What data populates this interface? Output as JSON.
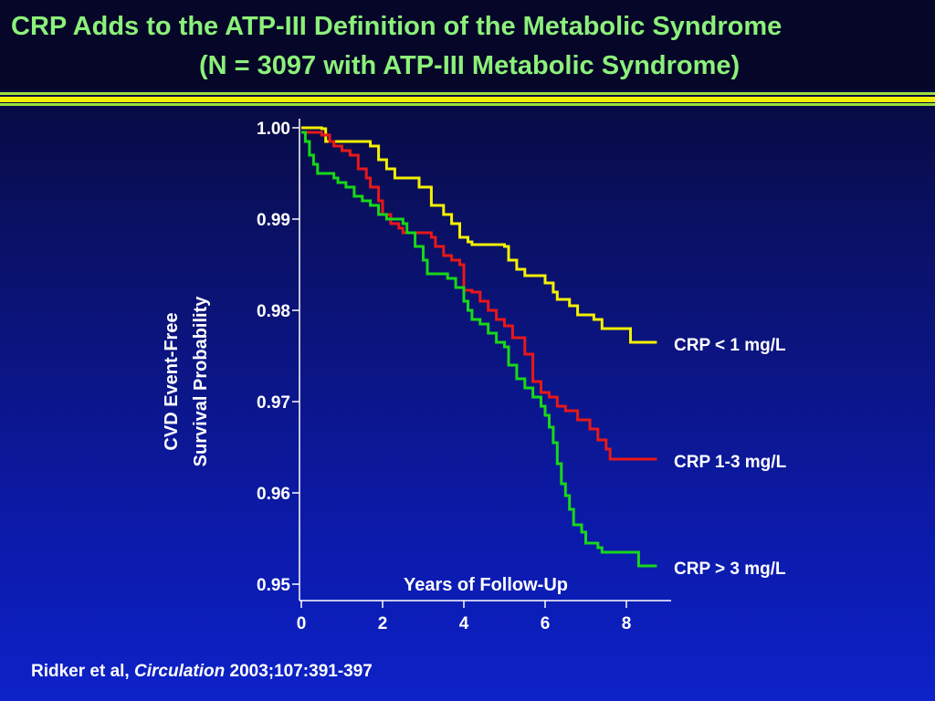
{
  "slide": {
    "title_line1": "CRP Adds to the ATP-III Definition of the Metabolic Syndrome",
    "title_line2": "(N = 3097 with ATP-III Metabolic Syndrome)",
    "citation_authors": "Ridker et al,",
    "citation_journal": "Circulation",
    "citation_ref": "2003;107:391-397"
  },
  "colors": {
    "title": "#8cf07a",
    "crp_low": "#f4f000",
    "crp_mid": "#e81818",
    "crp_high": "#18d818"
  },
  "chart_data": {
    "type": "line",
    "title": "",
    "xlabel": "Years of Follow-Up",
    "ylabel_line1": "CVD Event-Free",
    "ylabel_line2": "Survival Probability",
    "xlim": [
      0,
      9
    ],
    "ylim": [
      0.95,
      1.0
    ],
    "x_ticks": [
      0,
      2,
      4,
      6,
      8
    ],
    "x_tick_labels": [
      "0",
      "2",
      "4",
      "6",
      "8"
    ],
    "y_ticks": [
      0.95,
      0.96,
      0.97,
      0.98,
      0.99,
      1.0
    ],
    "y_tick_labels": [
      "0.95",
      "0.96",
      "0.97",
      "0.98",
      "0.99",
      "1.00"
    ],
    "series": [
      {
        "name": "CRP < 1 mg/L",
        "color": "#f4f000",
        "points": [
          [
            0,
            1.0
          ],
          [
            0.5,
            0.9999
          ],
          [
            0.6,
            0.9985
          ],
          [
            1.7,
            0.998
          ],
          [
            1.9,
            0.9965
          ],
          [
            2.1,
            0.9955
          ],
          [
            2.3,
            0.9945
          ],
          [
            2.9,
            0.9935
          ],
          [
            3.2,
            0.9915
          ],
          [
            3.5,
            0.9905
          ],
          [
            3.7,
            0.9895
          ],
          [
            3.9,
            0.988
          ],
          [
            4.1,
            0.9875
          ],
          [
            4.2,
            0.9872
          ],
          [
            5.0,
            0.987
          ],
          [
            5.1,
            0.9855
          ],
          [
            5.3,
            0.9845
          ],
          [
            5.5,
            0.9838
          ],
          [
            6.0,
            0.983
          ],
          [
            6.2,
            0.982
          ],
          [
            6.3,
            0.9812
          ],
          [
            6.6,
            0.9805
          ],
          [
            6.8,
            0.9795
          ],
          [
            7.2,
            0.979
          ],
          [
            7.4,
            0.978
          ],
          [
            8.1,
            0.9765
          ],
          [
            8.75,
            0.9765
          ]
        ]
      },
      {
        "name": "CRP 1-3 mg/L",
        "color": "#e81818",
        "points": [
          [
            0,
            0.9995
          ],
          [
            0.5,
            0.9992
          ],
          [
            0.7,
            0.9985
          ],
          [
            0.8,
            0.998
          ],
          [
            1.0,
            0.9975
          ],
          [
            1.2,
            0.997
          ],
          [
            1.4,
            0.9955
          ],
          [
            1.6,
            0.9945
          ],
          [
            1.7,
            0.9935
          ],
          [
            1.9,
            0.992
          ],
          [
            2.0,
            0.9905
          ],
          [
            2.2,
            0.9895
          ],
          [
            2.4,
            0.989
          ],
          [
            2.5,
            0.9885
          ],
          [
            3.2,
            0.988
          ],
          [
            3.3,
            0.987
          ],
          [
            3.5,
            0.986
          ],
          [
            3.7,
            0.9855
          ],
          [
            3.9,
            0.985
          ],
          [
            4.0,
            0.9822
          ],
          [
            4.2,
            0.982
          ],
          [
            4.4,
            0.981
          ],
          [
            4.6,
            0.98
          ],
          [
            4.8,
            0.979
          ],
          [
            5.0,
            0.9783
          ],
          [
            5.2,
            0.977
          ],
          [
            5.5,
            0.9752
          ],
          [
            5.7,
            0.9722
          ],
          [
            5.9,
            0.971
          ],
          [
            6.1,
            0.9705
          ],
          [
            6.3,
            0.9695
          ],
          [
            6.5,
            0.969
          ],
          [
            6.8,
            0.968
          ],
          [
            7.1,
            0.967
          ],
          [
            7.3,
            0.9658
          ],
          [
            7.5,
            0.9648
          ],
          [
            7.6,
            0.9637
          ],
          [
            8.75,
            0.9637
          ]
        ]
      },
      {
        "name": "CRP > 3 mg/L",
        "color": "#18d818",
        "points": [
          [
            0,
            0.9995
          ],
          [
            0.1,
            0.9985
          ],
          [
            0.2,
            0.997
          ],
          [
            0.3,
            0.996
          ],
          [
            0.4,
            0.995
          ],
          [
            0.8,
            0.9945
          ],
          [
            0.9,
            0.994
          ],
          [
            1.1,
            0.9935
          ],
          [
            1.3,
            0.9925
          ],
          [
            1.5,
            0.992
          ],
          [
            1.7,
            0.9915
          ],
          [
            1.9,
            0.9905
          ],
          [
            2.1,
            0.99
          ],
          [
            2.5,
            0.9895
          ],
          [
            2.6,
            0.9885
          ],
          [
            2.8,
            0.987
          ],
          [
            3.0,
            0.9855
          ],
          [
            3.1,
            0.984
          ],
          [
            3.6,
            0.9835
          ],
          [
            3.8,
            0.9825
          ],
          [
            4.0,
            0.981
          ],
          [
            4.1,
            0.98
          ],
          [
            4.2,
            0.979
          ],
          [
            4.4,
            0.9785
          ],
          [
            4.6,
            0.9775
          ],
          [
            4.8,
            0.9765
          ],
          [
            5.0,
            0.976
          ],
          [
            5.1,
            0.974
          ],
          [
            5.3,
            0.9725
          ],
          [
            5.5,
            0.9715
          ],
          [
            5.7,
            0.9705
          ],
          [
            5.9,
            0.9695
          ],
          [
            6.0,
            0.9685
          ],
          [
            6.1,
            0.9672
          ],
          [
            6.2,
            0.9655
          ],
          [
            6.3,
            0.9632
          ],
          [
            6.4,
            0.961
          ],
          [
            6.5,
            0.9597
          ],
          [
            6.6,
            0.9582
          ],
          [
            6.7,
            0.9565
          ],
          [
            6.9,
            0.9557
          ],
          [
            7.0,
            0.9545
          ],
          [
            7.3,
            0.954
          ],
          [
            7.4,
            0.9535
          ],
          [
            8.1,
            0.9535
          ],
          [
            8.3,
            0.952
          ],
          [
            8.75,
            0.952
          ]
        ]
      }
    ]
  }
}
